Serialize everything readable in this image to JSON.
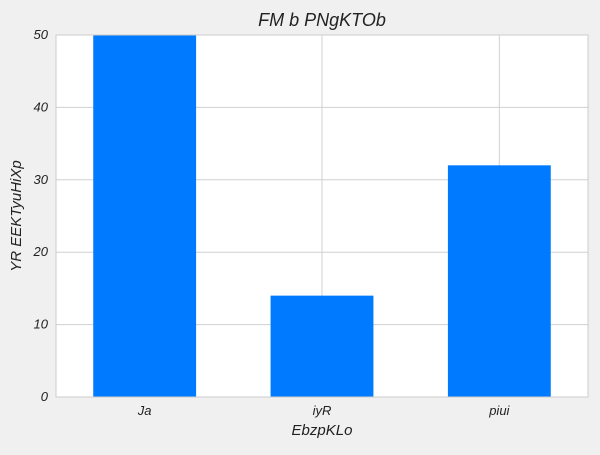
{
  "chart_data": {
    "type": "bar",
    "title": "FM b PNgKTOb",
    "xlabel": "EbzpKLo",
    "ylabel": "YR EEKTyuHiXp",
    "categories": [
      "Ja",
      "iyR",
      "piui"
    ],
    "values": [
      50,
      14,
      32
    ],
    "ylim": [
      0,
      50
    ],
    "yticks": [
      0,
      10,
      20,
      30,
      40,
      50
    ],
    "grid": true,
    "bar_color": "#007bff",
    "plot_background": "#ffffff",
    "figure_background": "#f0f0f0",
    "grid_color": "#d0d0d0"
  }
}
